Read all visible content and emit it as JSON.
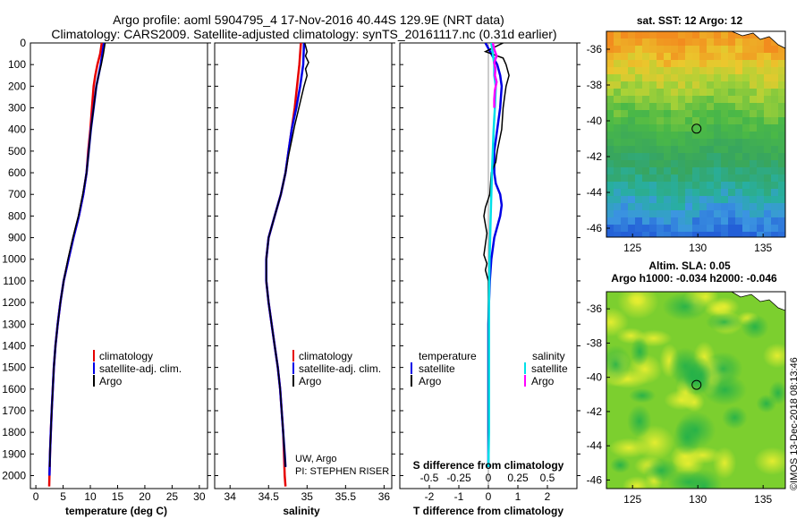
{
  "header": {
    "title_line1": "Argo profile: aoml 5904795_4 17-Nov-2016 40.44S 129.9E (NRT data)",
    "title_line2": "Climatology: CARS2009. Satellite-adjusted climatology: synTS_20161117.nc (0.31d earlier)"
  },
  "colors": {
    "climatology": "#e60000",
    "satellite": "#0000e6",
    "argo": "#000000",
    "salinity_satellite": "#00e0e8",
    "salinity_argo": "#ff00ff"
  },
  "depth_axis": {
    "ticks": [
      0,
      100,
      200,
      300,
      400,
      500,
      600,
      700,
      800,
      900,
      1000,
      1100,
      1200,
      1300,
      1400,
      1500,
      1600,
      1700,
      1800,
      1900,
      2000
    ],
    "range": [
      0,
      2060
    ],
    "inverted": true
  },
  "chart_data": [
    {
      "type": "line",
      "xlabel": "temperature (deg C)",
      "xlim": [
        -1,
        31.5
      ],
      "xticks": [
        0,
        5,
        10,
        15,
        20,
        25,
        30
      ],
      "xtick_labels": [
        "0",
        "5",
        "10",
        "15",
        "20",
        "25",
        "30"
      ],
      "legend": [
        "climatology",
        "satellite-adj. clim.",
        "Argo"
      ],
      "series": [
        {
          "name": "climatology",
          "color": "#e60000",
          "points": [
            [
              12.1,
              0
            ],
            [
              11.8,
              50
            ],
            [
              11.3,
              100
            ],
            [
              10.9,
              150
            ],
            [
              10.6,
              200
            ],
            [
              10.3,
              300
            ],
            [
              10.0,
              400
            ],
            [
              9.6,
              500
            ],
            [
              9.3,
              600
            ],
            [
              8.7,
              700
            ],
            [
              7.9,
              800
            ],
            [
              6.9,
              900
            ],
            [
              6.0,
              1000
            ],
            [
              5.1,
              1100
            ],
            [
              4.5,
              1200
            ],
            [
              4.0,
              1300
            ],
            [
              3.6,
              1400
            ],
            [
              3.3,
              1500
            ],
            [
              3.1,
              1600
            ],
            [
              2.9,
              1700
            ],
            [
              2.75,
              1800
            ],
            [
              2.6,
              1900
            ],
            [
              2.5,
              2000
            ],
            [
              2.45,
              2050
            ]
          ]
        },
        {
          "name": "satellite-adj. clim.",
          "color": "#0000e6",
          "points": [
            [
              12.5,
              0
            ],
            [
              12.2,
              50
            ],
            [
              11.9,
              100
            ],
            [
              11.5,
              150
            ],
            [
              11.1,
              200
            ],
            [
              10.6,
              300
            ],
            [
              10.1,
              400
            ],
            [
              9.7,
              500
            ],
            [
              9.3,
              600
            ],
            [
              8.7,
              700
            ],
            [
              7.9,
              800
            ],
            [
              6.9,
              900
            ],
            [
              6.0,
              1000
            ],
            [
              5.1,
              1100
            ],
            [
              4.5,
              1200
            ],
            [
              4.0,
              1300
            ],
            [
              3.6,
              1400
            ],
            [
              3.3,
              1500
            ],
            [
              3.1,
              1600
            ],
            [
              2.9,
              1700
            ],
            [
              2.75,
              1800
            ],
            [
              2.6,
              1900
            ],
            [
              2.5,
              2000
            ]
          ]
        },
        {
          "name": "Argo",
          "color": "#000000",
          "points": [
            [
              12.7,
              0
            ],
            [
              12.4,
              50
            ],
            [
              12.0,
              100
            ],
            [
              11.5,
              150
            ],
            [
              11.1,
              200
            ],
            [
              10.6,
              300
            ],
            [
              10.1,
              400
            ],
            [
              9.7,
              500
            ],
            [
              9.3,
              600
            ],
            [
              8.6,
              700
            ],
            [
              7.8,
              800
            ],
            [
              6.8,
              900
            ],
            [
              5.9,
              1000
            ],
            [
              5.1,
              1100
            ],
            [
              4.5,
              1200
            ],
            [
              4.0,
              1300
            ],
            [
              3.6,
              1400
            ],
            [
              3.3,
              1500
            ],
            [
              3.1,
              1600
            ],
            [
              2.9,
              1700
            ],
            [
              2.75,
              1800
            ],
            [
              2.6,
              1900
            ],
            [
              2.55,
              1960
            ]
          ]
        }
      ]
    },
    {
      "type": "line",
      "xlabel": "salinity",
      "xlim": [
        33.8,
        36.1
      ],
      "xticks": [
        34,
        34.5,
        35,
        35.5,
        36
      ],
      "xtick_labels": [
        "34",
        "34.5",
        "35",
        "35.5",
        "36"
      ],
      "legend": [
        "climatology",
        "satellite-adj. clim.",
        "Argo"
      ],
      "annotation_line1": "UW, Argo",
      "annotation_line2": "PI: STEPHEN RISER",
      "series": [
        {
          "name": "climatology",
          "color": "#e60000",
          "points": [
            [
              34.92,
              0
            ],
            [
              34.9,
              100
            ],
            [
              34.87,
              200
            ],
            [
              34.84,
              300
            ],
            [
              34.8,
              400
            ],
            [
              34.76,
              500
            ],
            [
              34.72,
              600
            ],
            [
              34.66,
              700
            ],
            [
              34.58,
              800
            ],
            [
              34.5,
              900
            ],
            [
              34.47,
              1000
            ],
            [
              34.47,
              1100
            ],
            [
              34.5,
              1200
            ],
            [
              34.54,
              1300
            ],
            [
              34.58,
              1400
            ],
            [
              34.62,
              1500
            ],
            [
              34.65,
              1600
            ],
            [
              34.67,
              1700
            ],
            [
              34.69,
              1800
            ],
            [
              34.7,
              1900
            ],
            [
              34.71,
              2000
            ],
            [
              34.72,
              2050
            ]
          ]
        },
        {
          "name": "satellite-adj. clim.",
          "color": "#0000e6",
          "points": [
            [
              34.96,
              0
            ],
            [
              34.95,
              100
            ],
            [
              34.91,
              200
            ],
            [
              34.86,
              300
            ],
            [
              34.8,
              400
            ],
            [
              34.76,
              500
            ],
            [
              34.72,
              600
            ],
            [
              34.66,
              700
            ],
            [
              34.58,
              800
            ],
            [
              34.5,
              900
            ],
            [
              34.47,
              1000
            ],
            [
              34.47,
              1100
            ],
            [
              34.5,
              1200
            ],
            [
              34.54,
              1300
            ],
            [
              34.58,
              1400
            ],
            [
              34.62,
              1500
            ],
            [
              34.65,
              1600
            ],
            [
              34.67,
              1700
            ],
            [
              34.69,
              1800
            ],
            [
              34.71,
              1900
            ],
            [
              34.72,
              1960
            ]
          ]
        },
        {
          "name": "Argo",
          "color": "#000000",
          "points": [
            [
              34.97,
              0
            ],
            [
              35.0,
              40
            ],
            [
              34.98,
              60
            ],
            [
              35.02,
              90
            ],
            [
              34.98,
              120
            ],
            [
              35.0,
              150
            ],
            [
              34.96,
              200
            ],
            [
              34.92,
              260
            ],
            [
              34.88,
              320
            ],
            [
              34.84,
              380
            ],
            [
              34.8,
              450
            ],
            [
              34.76,
              520
            ],
            [
              34.72,
              600
            ],
            [
              34.66,
              700
            ],
            [
              34.58,
              800
            ],
            [
              34.5,
              900
            ],
            [
              34.47,
              1000
            ],
            [
              34.47,
              1100
            ],
            [
              34.5,
              1200
            ],
            [
              34.54,
              1300
            ],
            [
              34.58,
              1400
            ],
            [
              34.62,
              1500
            ],
            [
              34.65,
              1600
            ],
            [
              34.67,
              1700
            ],
            [
              34.69,
              1800
            ],
            [
              34.71,
              1900
            ],
            [
              34.72,
              1960
            ]
          ]
        }
      ]
    },
    {
      "type": "line",
      "xlabel": "T difference from climatology",
      "xlabel_s": "S difference from climatology",
      "xlim": [
        -3,
        3
      ],
      "xticks": [
        -2,
        -1,
        0,
        1,
        2
      ],
      "xtick_labels": [
        "-2",
        "-1",
        "0",
        "1",
        "2"
      ],
      "s_tick_labels": [
        "-0.5",
        "-0.25",
        "0",
        "0.25",
        "0.5"
      ],
      "legend_temperature_title": "temperature",
      "legend_salinity_title": "salinity",
      "legend": [
        "satellite",
        "Argo",
        "satellite",
        "Argo"
      ],
      "series": [
        {
          "name": "satellite",
          "color": "#0000e6",
          "points": [
            [
              -0.1,
              0
            ],
            [
              0.1,
              50
            ],
            [
              0.3,
              100
            ],
            [
              0.4,
              150
            ],
            [
              0.45,
              200
            ],
            [
              0.4,
              300
            ],
            [
              0.3,
              400
            ],
            [
              0.2,
              500
            ],
            [
              0.2,
              600
            ],
            [
              0.25,
              650
            ],
            [
              0.4,
              700
            ],
            [
              0.45,
              750
            ],
            [
              0.4,
              800
            ],
            [
              0.3,
              850
            ],
            [
              0.2,
              900
            ],
            [
              0.1,
              1000
            ],
            [
              0.05,
              1100
            ],
            [
              0.02,
              1200
            ],
            [
              0,
              1300
            ],
            [
              0,
              1500
            ],
            [
              0,
              1700
            ],
            [
              0,
              1960
            ]
          ]
        },
        {
          "name": "Argo",
          "color": "#000000",
          "points": [
            [
              0.5,
              0
            ],
            [
              0.2,
              20
            ],
            [
              -0.1,
              40
            ],
            [
              0.5,
              70
            ],
            [
              0.6,
              100
            ],
            [
              0.7,
              150
            ],
            [
              0.6,
              200
            ],
            [
              0.55,
              250
            ],
            [
              0.5,
              300
            ],
            [
              0.45,
              400
            ],
            [
              0.3,
              500
            ],
            [
              0.25,
              550
            ],
            [
              0.1,
              600
            ],
            [
              0.05,
              700
            ],
            [
              -0.1,
              760
            ],
            [
              -0.15,
              800
            ],
            [
              -0.05,
              880
            ],
            [
              -0.1,
              930
            ],
            [
              -0.15,
              980
            ],
            [
              -0.05,
              1020
            ],
            [
              -0.1,
              1050
            ],
            [
              0,
              1100
            ],
            [
              0,
              1200
            ],
            [
              0,
              1400
            ],
            [
              0,
              1600
            ],
            [
              0,
              1960
            ]
          ]
        },
        {
          "name": "satellite",
          "color": "#00e0e8",
          "points": [
            [
              0.1,
              0
            ],
            [
              0.15,
              50
            ],
            [
              0.2,
              100
            ],
            [
              0.2,
              150
            ],
            [
              0.25,
              200
            ],
            [
              0.22,
              300
            ],
            [
              0.18,
              400
            ],
            [
              0.15,
              500
            ],
            [
              0.12,
              600
            ],
            [
              0.1,
              700
            ],
            [
              0.08,
              800
            ],
            [
              0.06,
              900
            ],
            [
              0.04,
              1000
            ],
            [
              0.03,
              1100
            ],
            [
              0.02,
              1200
            ],
            [
              0.02,
              1400
            ],
            [
              0.02,
              1600
            ],
            [
              0.02,
              1800
            ],
            [
              0,
              1960
            ]
          ]
        },
        {
          "name": "Argo",
          "color": "#ff00ff",
          "points": [
            [
              0.15,
              0
            ],
            [
              0.2,
              30
            ],
            [
              0.28,
              60
            ],
            [
              0.2,
              90
            ],
            [
              0.24,
              120
            ],
            [
              0.22,
              150
            ],
            [
              0.28,
              180
            ],
            [
              0.22,
              220
            ],
            [
              0.2,
              260
            ],
            [
              0.2,
              300
            ]
          ]
        }
      ]
    }
  ],
  "map_top": {
    "title": "sat. SST: 12 Argo: 12",
    "xticks": [
      "125",
      "130",
      "135"
    ],
    "yticks": [
      "-36",
      "-38",
      "-40",
      "-42",
      "-44",
      "-46"
    ],
    "marker": [
      129.9,
      -40.44
    ]
  },
  "map_bottom": {
    "title_line1": "Altim. SLA: 0.05",
    "title_line2": "Argo h1000: -0.034 h2000: -0.046",
    "xticks": [
      "125",
      "130",
      "135"
    ],
    "yticks": [
      "-36",
      "-38",
      "-40",
      "-42",
      "-44",
      "-46"
    ],
    "marker": [
      129.9,
      -40.44
    ]
  },
  "credit": "©IMOS 13-Dec-2018 08:13:46"
}
